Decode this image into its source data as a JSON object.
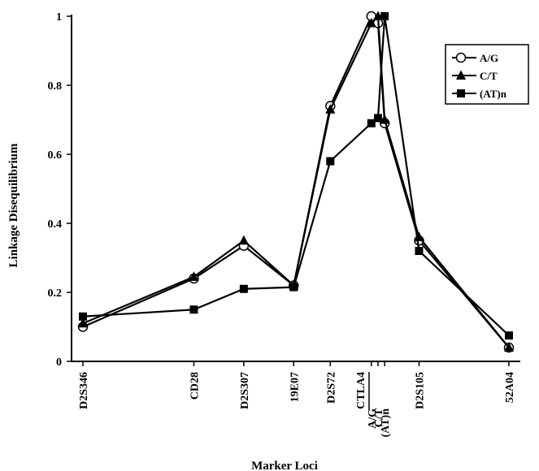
{
  "chart_data": {
    "type": "line",
    "title": "",
    "xlabel": "Marker Loci",
    "ylabel": "Linkage Disequilibrium",
    "ylim": [
      0,
      1
    ],
    "yticks": [
      0,
      0.2,
      0.4,
      0.6,
      0.8,
      1
    ],
    "ytick_labels": [
      "0",
      "0.2",
      "0.4",
      "0.6",
      "0.8",
      "1"
    ],
    "grid": false,
    "legend_position": "top-right",
    "categories": [
      "D2S346",
      "CD28",
      "D2S307",
      "19E07",
      "D2S72",
      "A/G",
      "C/T",
      "(AT)n",
      "D2S105",
      "52A04"
    ],
    "group_label": {
      "text": "CTLA4",
      "members": [
        "A/G",
        "C/T",
        "(AT)n"
      ]
    },
    "x": [
      0.0,
      1.0,
      1.45,
      1.9,
      2.23,
      2.6,
      2.66,
      2.72,
      3.03,
      3.84
    ],
    "series": [
      {
        "name": "A/G",
        "marker": "circle-open",
        "values": [
          0.1,
          0.24,
          0.335,
          0.22,
          0.74,
          1.0,
          0.98,
          0.69,
          0.35,
          0.04
        ]
      },
      {
        "name": "C/T",
        "marker": "triangle-filled",
        "values": [
          0.11,
          0.245,
          0.35,
          0.22,
          0.73,
          0.98,
          1.0,
          0.7,
          0.36,
          0.04
        ]
      },
      {
        "name": "(AT)n",
        "marker": "square-filled",
        "values": [
          0.13,
          0.15,
          0.21,
          0.215,
          0.58,
          0.69,
          0.705,
          1.0,
          0.32,
          0.075
        ]
      }
    ]
  }
}
